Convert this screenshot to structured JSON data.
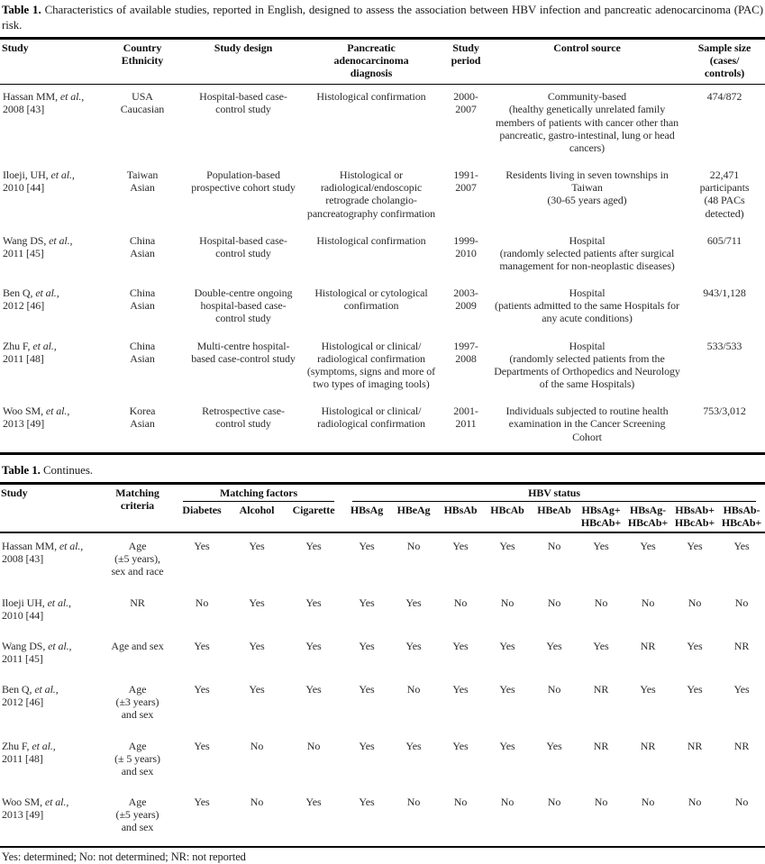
{
  "caption": {
    "label": "Table 1.",
    "text": "Characteristics of available studies, reported in English, designed to assess the association between HBV infection and pancreatic adenocarcinoma (PAC) risk."
  },
  "continues": {
    "label": "Table 1.",
    "text": "Continues."
  },
  "footnote": "Yes: determined; No: not determined; NR: not reported",
  "table1": {
    "headers": {
      "study": "Study",
      "country": "Country\nEthnicity",
      "design": "Study design",
      "diagnosis": "Pancreatic\nadenocarcinoma\ndiagnosis",
      "period": "Study\nperiod",
      "control": "Control source",
      "sample": "Sample size\n(cases/\ncontrols)"
    },
    "rows": [
      {
        "study": {
          "pre": "Hassan MM,",
          "etal": "et al.,",
          "year": "2008 [43]"
        },
        "country": "USA\nCaucasian",
        "design": "Hospital-based case-control study",
        "diagnosis": "Histological confirmation",
        "period": "2000-\n2007",
        "control": "Community-based\n(healthy genetically unrelated family members of patients with cancer other than pancreatic, gastro-intestinal, lung or head cancers)",
        "sample": "474/872"
      },
      {
        "study": {
          "pre": "Iloeji, UH,",
          "etal": "et al.,",
          "year": "2010 [44]"
        },
        "country": "Taiwan\nAsian",
        "design": "Population-based prospective cohort study",
        "diagnosis": "Histological or\nradiological/endoscopic retrograde cholangio-pancreatography confirmation",
        "period": "1991-\n2007",
        "control": "Residents living in seven townships in Taiwan\n(30-65 years aged)",
        "sample": "22,471 participants\n(48 PACs detected)"
      },
      {
        "study": {
          "pre": "Wang DS,",
          "etal": "et al.,",
          "year": "2011 [45]"
        },
        "country": "China\nAsian",
        "design": "Hospital-based case-control study",
        "diagnosis": "Histological confirmation",
        "period": "1999-\n2010",
        "control": "Hospital\n(randomly selected patients after surgical management for non-neoplastic diseases)",
        "sample": "605/711"
      },
      {
        "study": {
          "pre": "Ben Q,",
          "etal": "et al.,",
          "year": "2012 [46]"
        },
        "country": "China\nAsian",
        "design": "Double-centre ongoing hospital-based case-control study",
        "diagnosis": "Histological or cytological confirmation",
        "period": "2003-\n2009",
        "control": "Hospital\n(patients admitted to the same Hospitals for any acute conditions)",
        "sample": "943/1,128"
      },
      {
        "study": {
          "pre": "Zhu F,",
          "etal": "et al.,",
          "year": "2011 [48]"
        },
        "country": "China\nAsian",
        "design": "Multi-centre hospital-based case-control study",
        "diagnosis": "Histological or clinical/\nradiological confirmation\n(symptoms, signs and more of two types of imaging tools)",
        "period": "1997-\n2008",
        "control": "Hospital\n(randomly selected patients from the Departments of Orthopedics and Neurology of the same Hospitals)",
        "sample": "533/533"
      },
      {
        "study": {
          "pre": "Woo SM,",
          "etal": "et al.,",
          "year": "2013 [49]"
        },
        "country": "Korea\nAsian",
        "design": "Retrospective case-control study",
        "diagnosis": "Histological or clinical/\nradiological confirmation",
        "period": "2001-\n2011",
        "control": "Individuals subjected to routine health examination in the Cancer Screening Cohort",
        "sample": "753/3,012"
      }
    ]
  },
  "table2": {
    "headers": {
      "study": "Study",
      "criteria": "Matching\ncriteria",
      "factors_group": "Matching factors",
      "hbv_group": "HBV status",
      "factors": [
        "Diabetes",
        "Alcohol",
        "Cigarette"
      ],
      "hbv": [
        "HBsAg",
        "HBeAg",
        "HBsAb",
        "HBcAb",
        "HBeAb",
        "HBsAg+\nHBcAb+",
        "HBsAg-\nHBcAb+",
        "HBsAb+\nHBcAb+",
        "HBsAb-\nHBcAb+"
      ]
    },
    "rows": [
      {
        "study": {
          "pre": "Hassan MM,",
          "etal": "et al.,",
          "year": "2008 [43]"
        },
        "criteria": "Age\n(±5 years),\nsex and race",
        "values": [
          "Yes",
          "Yes",
          "Yes",
          "Yes",
          "No",
          "Yes",
          "Yes",
          "No",
          "Yes",
          "Yes",
          "Yes",
          "Yes"
        ]
      },
      {
        "study": {
          "pre": "Iloeji UH,",
          "etal": "et al.,",
          "year": "2010 [44]"
        },
        "criteria": "NR",
        "values": [
          "No",
          "Yes",
          "Yes",
          "Yes",
          "Yes",
          "No",
          "No",
          "No",
          "No",
          "No",
          "No",
          "No"
        ]
      },
      {
        "study": {
          "pre": "Wang DS,",
          "etal": "et al.,",
          "year": "2011 [45]"
        },
        "criteria": "Age and sex",
        "values": [
          "Yes",
          "Yes",
          "Yes",
          "Yes",
          "Yes",
          "Yes",
          "Yes",
          "Yes",
          "Yes",
          "NR",
          "Yes",
          "NR"
        ]
      },
      {
        "study": {
          "pre": "Ben Q,",
          "etal": "et al.,",
          "year": "2012 [46]"
        },
        "criteria": "Age\n(±3 years)\nand sex",
        "values": [
          "Yes",
          "Yes",
          "Yes",
          "Yes",
          "No",
          "Yes",
          "Yes",
          "No",
          "NR",
          "Yes",
          "Yes",
          "Yes"
        ]
      },
      {
        "study": {
          "pre": "Zhu F,",
          "etal": "et al.,",
          "year": "2011 [48]"
        },
        "criteria": "Age\n(± 5 years)\nand sex",
        "values": [
          "Yes",
          "No",
          "No",
          "Yes",
          "Yes",
          "Yes",
          "Yes",
          "Yes",
          "NR",
          "NR",
          "NR",
          "NR"
        ]
      },
      {
        "study": {
          "pre": "Woo SM,",
          "etal": "et al.,",
          "year": "2013 [49]"
        },
        "criteria": "Age\n(±5 years)\nand sex",
        "values": [
          "Yes",
          "No",
          "Yes",
          "Yes",
          "No",
          "No",
          "No",
          "No",
          "No",
          "No",
          "No",
          "No"
        ]
      }
    ]
  }
}
